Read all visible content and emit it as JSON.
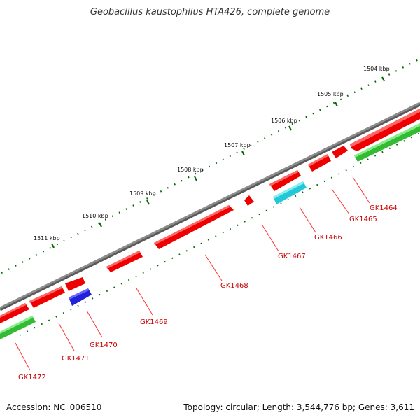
{
  "title": "Geobacillus kaustophilus HTA426, complete genome",
  "accession_label": "Accession: NC_006510",
  "summary_label": "Topology: circular; Length: 3,544,776 bp; Genes: 3,611",
  "kbp_ticks": [
    {
      "label": "1504 kbp"
    },
    {
      "label": "1505 kbp"
    },
    {
      "label": "1506 kbp"
    },
    {
      "label": "1507 kbp"
    },
    {
      "label": "1508 kbp"
    },
    {
      "label": "1509 kbp"
    },
    {
      "label": "1510 kbp"
    },
    {
      "label": "1511 kbp"
    }
  ],
  "genes": [
    {
      "id": "GK1464",
      "strand": "forward",
      "color": "#ff0000"
    },
    {
      "id": "GK1465",
      "strand": "forward",
      "color": "#ff0000"
    },
    {
      "id": "GK1466",
      "strand": "forward",
      "color": "#ff0000"
    },
    {
      "id": "GK1467",
      "strand": "forward",
      "color": "#ff0000"
    },
    {
      "id": "GK1468",
      "strand": "forward",
      "color": "#ff0000"
    },
    {
      "id": "GK1469",
      "strand": "forward",
      "color": "#ff0000"
    },
    {
      "id": "GK1470",
      "strand": "forward",
      "color": "#ff0000"
    },
    {
      "id": "GK1471",
      "strand": "forward",
      "color": "#ff0000"
    },
    {
      "id": "GK1472",
      "strand": "forward",
      "color": "#ff0000"
    }
  ],
  "colors": {
    "forward_gene": "#ff0000",
    "rna_gene": "#2222dd",
    "cyan_feature": "#22c8d8",
    "green_feature": "#33cc33",
    "backbone": "#808080",
    "tick": "#006600",
    "label": "#cc0000"
  }
}
